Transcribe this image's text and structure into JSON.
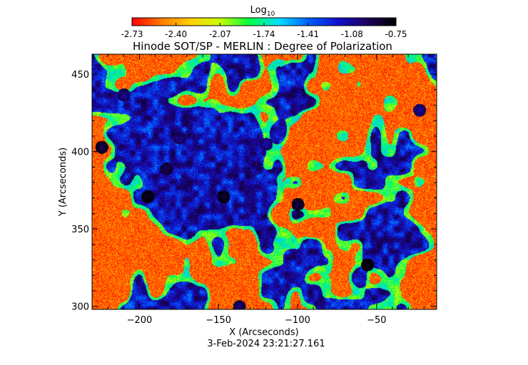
{
  "chart_data": {
    "type": "heatmap",
    "title": "Hinode SOT/SP - MERLIN : Degree of Polarization",
    "xlabel": "X (Arcseconds)",
    "ylabel": "Y (Arcseconds)",
    "timestamp": "3-Feb-2024 23:21:27.161",
    "xlim": [
      -230,
      -12
    ],
    "ylim": [
      298,
      463
    ],
    "x_ticks": [
      -200,
      -150,
      -100,
      -50
    ],
    "y_ticks": [
      300,
      350,
      400,
      450
    ],
    "colorbar": {
      "label_base": "Log",
      "label_subscript": "10",
      "ticks": [
        "-2.73",
        "-2.40",
        "-2.07",
        "-1.74",
        "-1.41",
        "-1.08",
        "-0.75"
      ],
      "vmin": -2.73,
      "vmax": -0.75,
      "colors": [
        "#ff0000",
        "#ff7a00",
        "#ffd000",
        "#c8ff00",
        "#00ff40",
        "#00e0ff",
        "#0060ff",
        "#1010d0",
        "#200060",
        "#000000"
      ]
    },
    "field_description_values": {
      "background_level": -2.55,
      "network_level": -1.15,
      "pore_level": -0.85
    },
    "strong_features": [
      {
        "x": -210,
        "y": 437,
        "value": -1.1
      },
      {
        "x": -224,
        "y": 403,
        "value": -0.95
      },
      {
        "x": -195,
        "y": 371,
        "value": -0.85
      },
      {
        "x": -183,
        "y": 389,
        "value": -1.0
      },
      {
        "x": -147,
        "y": 371,
        "value": -0.9
      },
      {
        "x": -100,
        "y": 366,
        "value": -0.95
      },
      {
        "x": -56,
        "y": 327,
        "value": -0.8
      },
      {
        "x": -23,
        "y": 427,
        "value": -1.1
      },
      {
        "x": -137,
        "y": 300,
        "value": -1.05
      },
      {
        "x": -175,
        "y": 409,
        "value": -1.1
      },
      {
        "x": -120,
        "y": 405,
        "value": -1.15
      }
    ]
  }
}
